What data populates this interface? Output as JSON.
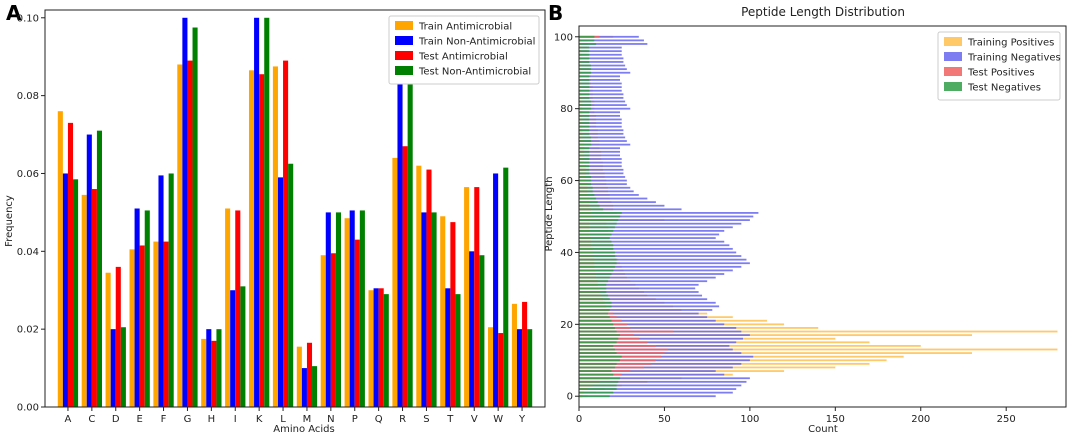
{
  "panel_labels": {
    "a": "A",
    "b": "B"
  },
  "chart_data": [
    {
      "type": "bar",
      "title": "",
      "xlabel": "Amino Acids",
      "ylabel": "Frequency",
      "ylim": [
        0,
        0.102
      ],
      "yticks": [
        0.0,
        0.02,
        0.04,
        0.06,
        0.08,
        0.1
      ],
      "ytick_labels": [
        "0.00",
        "0.02",
        "0.04",
        "0.06",
        "0.08",
        "0.10"
      ],
      "categories": [
        "A",
        "C",
        "D",
        "E",
        "F",
        "G",
        "H",
        "I",
        "K",
        "L",
        "M",
        "N",
        "P",
        "Q",
        "R",
        "S",
        "T",
        "V",
        "W",
        "Y"
      ],
      "legend_position": "top-right",
      "series": [
        {
          "name": "Train Antimicrobial",
          "color": "#FFA500",
          "values": [
            0.076,
            0.0545,
            0.0345,
            0.0405,
            0.0425,
            0.088,
            0.0175,
            0.051,
            0.0865,
            0.0875,
            0.0155,
            0.039,
            0.0485,
            0.03,
            0.064,
            0.062,
            0.049,
            0.0565,
            0.0205,
            0.0265
          ]
        },
        {
          "name": "Train Non-Antimicrobial",
          "color": "#0000FF",
          "values": [
            0.06,
            0.07,
            0.02,
            0.051,
            0.0595,
            0.1,
            0.02,
            0.03,
            0.1,
            0.059,
            0.01,
            0.05,
            0.0505,
            0.0305,
            0.09,
            0.05,
            0.0305,
            0.04,
            0.06,
            0.02
          ]
        },
        {
          "name": "Test Antimicrobial",
          "color": "#FF0000",
          "values": [
            0.073,
            0.056,
            0.036,
            0.0415,
            0.0425,
            0.089,
            0.017,
            0.0505,
            0.0855,
            0.089,
            0.0165,
            0.0395,
            0.043,
            0.0305,
            0.067,
            0.061,
            0.0475,
            0.0565,
            0.019,
            0.027
          ]
        },
        {
          "name": "Test Non-Antimicrobial",
          "color": "#008000",
          "values": [
            0.0585,
            0.071,
            0.0205,
            0.0505,
            0.06,
            0.0975,
            0.02,
            0.031,
            0.1,
            0.0625,
            0.0105,
            0.05,
            0.0505,
            0.029,
            0.088,
            0.05,
            0.029,
            0.039,
            0.0615,
            0.02
          ]
        }
      ]
    },
    {
      "type": "bar",
      "orientation": "horizontal",
      "title": "Peptide Length Distribution",
      "xlabel": "Count",
      "ylabel": "Peptide Length",
      "xlim": [
        0,
        285
      ],
      "ylim": [
        -3,
        103
      ],
      "xticks": [
        0,
        50,
        100,
        150,
        200,
        250
      ],
      "xtick_labels": [
        "0",
        "50",
        "100",
        "150",
        "200",
        "250"
      ],
      "yticks": [
        0,
        20,
        40,
        60,
        80,
        100
      ],
      "ytick_labels": [
        "0",
        "20",
        "40",
        "60",
        "80",
        "100"
      ],
      "legend_position": "top-right",
      "y": [
        0,
        1,
        2,
        3,
        4,
        5,
        6,
        7,
        8,
        9,
        10,
        11,
        12,
        13,
        14,
        15,
        16,
        17,
        18,
        19,
        20,
        21,
        22,
        23,
        24,
        25,
        26,
        27,
        28,
        29,
        30,
        31,
        32,
        33,
        34,
        35,
        36,
        37,
        38,
        39,
        40,
        41,
        42,
        43,
        44,
        45,
        46,
        47,
        48,
        49,
        50,
        51,
        52,
        53,
        54,
        55,
        56,
        57,
        58,
        59,
        60,
        61,
        62,
        63,
        64,
        65,
        66,
        67,
        68,
        69,
        70,
        71,
        72,
        73,
        74,
        75,
        76,
        77,
        78,
        79,
        80,
        81,
        82,
        83,
        84,
        85,
        86,
        87,
        88,
        89,
        90,
        91,
        92,
        93,
        94,
        95,
        96,
        97,
        98,
        99,
        100
      ],
      "series": [
        {
          "name": "Training Positives",
          "color": "#FFC04D",
          "values": [
            5,
            10,
            15,
            25,
            40,
            60,
            90,
            120,
            150,
            170,
            180,
            190,
            230,
            280,
            200,
            170,
            150,
            230,
            280,
            140,
            120,
            110,
            90,
            75,
            60,
            55,
            50,
            45,
            40,
            38,
            35,
            33,
            30,
            28,
            27,
            26,
            25,
            24,
            23,
            22,
            21,
            20,
            20,
            19,
            18,
            18,
            17,
            17,
            16,
            50,
            25,
            22,
            20,
            20,
            19,
            18,
            18,
            17,
            17,
            16,
            16,
            15,
            15,
            14,
            14,
            14,
            13,
            13,
            13,
            12,
            12,
            12,
            11,
            11,
            11,
            10,
            10,
            10,
            10,
            9,
            9,
            9,
            9,
            8,
            8,
            8,
            8,
            7,
            7,
            7,
            7,
            6,
            6,
            6,
            6,
            5,
            5,
            5,
            5,
            5,
            20
          ]
        },
        {
          "name": "Training Negatives",
          "color": "#6666EE",
          "values": [
            80,
            90,
            92,
            95,
            98,
            100,
            85,
            80,
            90,
            95,
            100,
            102,
            95,
            90,
            88,
            92,
            96,
            100,
            95,
            92,
            85,
            80,
            75,
            70,
            78,
            82,
            80,
            75,
            72,
            70,
            68,
            70,
            75,
            80,
            85,
            90,
            95,
            100,
            98,
            95,
            92,
            90,
            88,
            85,
            80,
            82,
            85,
            90,
            95,
            100,
            102,
            105,
            60,
            50,
            45,
            40,
            35,
            32,
            30,
            28,
            28,
            27,
            26,
            26,
            25,
            25,
            25,
            24,
            24,
            24,
            30,
            28,
            27,
            26,
            26,
            25,
            25,
            25,
            24,
            24,
            30,
            28,
            27,
            26,
            26,
            25,
            25,
            25,
            24,
            24,
            30,
            28,
            27,
            26,
            26,
            25,
            25,
            25,
            40,
            38,
            35
          ]
        },
        {
          "name": "Test Positives",
          "color": "#F06060",
          "values": [
            2,
            3,
            5,
            8,
            12,
            18,
            25,
            30,
            38,
            42,
            45,
            48,
            50,
            52,
            45,
            40,
            35,
            32,
            55,
            30,
            28,
            25,
            22,
            20,
            18,
            16,
            15,
            14,
            13,
            12,
            12,
            11,
            11,
            10,
            10,
            10,
            9,
            9,
            9,
            8,
            8,
            8,
            7,
            7,
            7,
            6,
            6,
            6,
            6,
            20,
            8,
            7,
            7,
            6,
            6,
            6,
            5,
            5,
            5,
            5,
            4,
            4,
            4,
            4,
            4,
            3,
            3,
            3,
            3,
            3,
            3,
            3,
            2,
            2,
            2,
            2,
            2,
            2,
            2,
            2,
            2,
            2,
            2,
            2,
            1,
            1,
            1,
            1,
            1,
            1,
            1,
            1,
            1,
            1,
            1,
            1,
            1,
            1,
            1,
            1,
            12
          ]
        },
        {
          "name": "Test Negatives",
          "color": "#2E9E45",
          "values": [
            18,
            20,
            22,
            22,
            23,
            24,
            20,
            19,
            21,
            22,
            24,
            25,
            22,
            21,
            20,
            22,
            23,
            24,
            22,
            21,
            20,
            19,
            18,
            17,
            18,
            19,
            19,
            18,
            17,
            16,
            16,
            16,
            17,
            18,
            19,
            20,
            21,
            22,
            22,
            21,
            21,
            20,
            20,
            19,
            18,
            19,
            20,
            21,
            22,
            23,
            24,
            25,
            14,
            12,
            11,
            10,
            9,
            8,
            8,
            7,
            7,
            7,
            6,
            6,
            6,
            6,
            6,
            6,
            6,
            6,
            7,
            7,
            7,
            6,
            6,
            6,
            6,
            6,
            6,
            6,
            7,
            7,
            7,
            6,
            6,
            6,
            6,
            6,
            6,
            6,
            7,
            7,
            7,
            6,
            6,
            6,
            6,
            6,
            10,
            9,
            9
          ]
        }
      ]
    }
  ]
}
